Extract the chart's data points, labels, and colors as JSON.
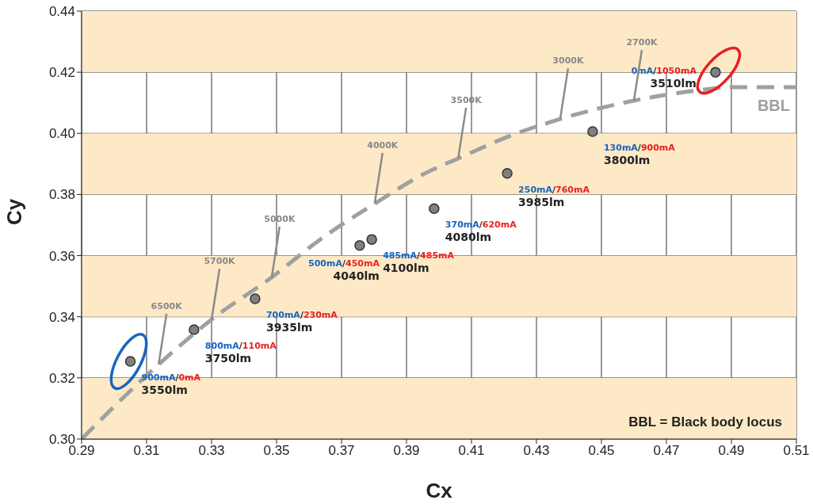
{
  "chart_data": {
    "type": "scatter",
    "xlabel": "Cx",
    "ylabel": "Cy",
    "xlim": [
      0.29,
      0.51
    ],
    "ylim": [
      0.3,
      0.44
    ],
    "xticks": [
      0.29,
      0.31,
      0.33,
      0.35,
      0.37,
      0.39,
      0.41,
      0.43,
      0.45,
      0.47,
      0.49,
      0.51
    ],
    "yticks": [
      {
        "value": 0.3,
        "label": "0.30"
      },
      0.32,
      0.34,
      0.36,
      0.38,
      {
        "value": 0.4,
        "label": "0.40"
      },
      0.42,
      0.44
    ],
    "grid": true,
    "series": [
      {
        "color": "#808080",
        "marker": "circle",
        "x": [
          0.305,
          0.3246,
          0.3434,
          0.3756,
          0.3793,
          0.3985,
          0.421,
          0.4473,
          0.4851
        ],
        "values": [
          0.3254,
          0.3358,
          0.3459,
          0.3633,
          0.3653,
          0.3754,
          0.3869,
          0.4006,
          0.42
        ],
        "value_labels": [
          "900mA/0mA\n3550lm",
          "800mA/110mA\n3750lm",
          "700mA/230mA\n3935lm",
          "500mA/450mA\n4040lm",
          "485mA/485mA\n4100lm",
          "370mA/620mA\n4080lm",
          "250mA/760mA\n3985lm",
          "130mA/900mA\n3800lm",
          "0mA/1050mA\n3510lm"
        ]
      },
      {
        "type": "line",
        "name": "BBL",
        "color": "#a0a0a0",
        "marker": "none",
        "line_style": "dashed",
        "x": [
          0.29,
          0.3137,
          0.33,
          0.3485,
          0.3632,
          0.3802,
          0.3966,
          0.4059,
          0.421,
          0.4373,
          0.46,
          0.4778,
          0.49,
          0.51
        ],
        "values": [
          0.3,
          0.3244,
          0.3391,
          0.3529,
          0.3651,
          0.377,
          0.3874,
          0.3918,
          0.3988,
          0.4047,
          0.4107,
          0.4138,
          0.4151,
          0.4151
        ]
      }
    ],
    "bands": [
      {
        "axis": "y",
        "from": 0.3,
        "to": 0.32,
        "color": "#fee9c7"
      },
      {
        "axis": "y",
        "from": 0.34,
        "to": 0.36,
        "color": "#fee9c7"
      },
      {
        "axis": "y",
        "from": 0.38,
        "to": 0.4,
        "color": "#fee9c7"
      },
      {
        "axis": "y",
        "from": 0.42,
        "to": 0.44,
        "color": "#fee9c7"
      }
    ],
    "annotations": [
      {
        "text": "6500K",
        "x": 0.3137,
        "y": 0.3244
      },
      {
        "text": "5700K",
        "x": 0.33,
        "y": 0.3391
      },
      {
        "text": "5000K",
        "x": 0.3485,
        "y": 0.3529
      },
      {
        "text": "4000K",
        "x": 0.3802,
        "y": 0.377
      },
      {
        "text": "3500K",
        "x": 0.4059,
        "y": 0.3918
      },
      {
        "text": "3000K",
        "x": 0.4373,
        "y": 0.4047
      },
      {
        "text": "2700K",
        "x": 0.46,
        "y": 0.4107
      },
      "BBL = Black body locus"
    ]
  }
}
